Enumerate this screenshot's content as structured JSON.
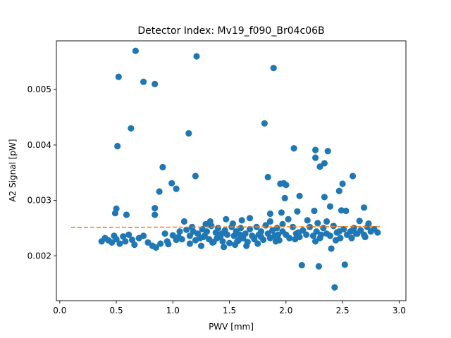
{
  "chart_data": {
    "type": "scatter",
    "title": "Detector Index: Mv19_f090_Br04c06B",
    "xlabel": "PWV [mm]",
    "ylabel": "A2 Signal [pW]",
    "xlim": [
      -0.03,
      3.06
    ],
    "ylim": [
      0.00119,
      0.00588
    ],
    "xticks": [
      0.0,
      0.5,
      1.0,
      1.5,
      2.0,
      2.5,
      3.0
    ],
    "xtick_labels": [
      "0.0",
      "0.5",
      "1.0",
      "1.5",
      "2.0",
      "2.5",
      "3.0"
    ],
    "yticks": [
      0.002,
      0.003,
      0.004,
      0.005
    ],
    "ytick_labels": [
      "0.002",
      "0.003",
      "0.004",
      "0.005"
    ],
    "grid": false,
    "colors": {
      "points": "#1f77b4",
      "fit": "#ff7f0e"
    },
    "series": [
      {
        "name": "measurements",
        "marker": "circle",
        "points": [
          [
            0.67,
            0.0057
          ],
          [
            0.52,
            0.00523
          ],
          [
            0.74,
            0.00514
          ],
          [
            0.84,
            0.0051
          ],
          [
            1.21,
            0.0056
          ],
          [
            1.89,
            0.00539
          ],
          [
            0.51,
            0.00398
          ],
          [
            0.63,
            0.0043
          ],
          [
            1.14,
            0.00421
          ],
          [
            1.81,
            0.00439
          ],
          [
            2.07,
            0.00394
          ],
          [
            2.26,
            0.00391
          ],
          [
            2.26,
            0.00377
          ],
          [
            2.37,
            0.00389
          ],
          [
            2.34,
            0.00367
          ],
          [
            2.3,
            0.00361
          ],
          [
            0.91,
            0.0036
          ],
          [
            1.2,
            0.00344
          ],
          [
            1.84,
            0.00342
          ],
          [
            2.59,
            0.00344
          ],
          [
            0.99,
            0.00331
          ],
          [
            1.03,
            0.00321
          ],
          [
            0.88,
            0.00316
          ],
          [
            1.95,
            0.0033
          ],
          [
            1.98,
            0.00331
          ],
          [
            2.0,
            0.00328
          ],
          [
            2.5,
            0.0033
          ],
          [
            2.47,
            0.00317
          ],
          [
            2.12,
            0.00308
          ],
          [
            2.34,
            0.00306
          ],
          [
            1.99,
            0.00304
          ],
          [
            0.5,
            0.00285
          ],
          [
            0.49,
            0.00277
          ],
          [
            0.59,
            0.00274
          ],
          [
            0.84,
            0.00286
          ],
          [
            0.84,
            0.00274
          ],
          [
            2.25,
            0.00281
          ],
          [
            2.39,
            0.00289
          ],
          [
            2.49,
            0.00282
          ],
          [
            2.53,
            0.00281
          ],
          [
            2.69,
            0.00287
          ],
          [
            1.96,
            0.00278
          ],
          [
            1.86,
            0.00276
          ],
          [
            2.1,
            0.0028
          ],
          [
            2.14,
            0.00183
          ],
          [
            2.29,
            0.00181
          ],
          [
            2.52,
            0.00184
          ],
          [
            2.4,
            0.00213
          ],
          [
            2.43,
            0.00143
          ],
          [
            0.37,
            0.00226
          ],
          [
            0.4,
            0.00232
          ],
          [
            0.43,
            0.00228
          ],
          [
            0.46,
            0.00224
          ],
          [
            0.48,
            0.00236
          ],
          [
            0.5,
            0.0023
          ],
          [
            0.53,
            0.00222
          ],
          [
            0.56,
            0.00235
          ],
          [
            0.58,
            0.00226
          ],
          [
            0.61,
            0.00238
          ],
          [
            0.64,
            0.00229
          ],
          [
            0.66,
            0.0022
          ],
          [
            0.7,
            0.00232
          ],
          [
            0.74,
            0.00236
          ],
          [
            0.78,
            0.00224
          ],
          [
            0.82,
            0.00218
          ],
          [
            0.85,
            0.00215
          ],
          [
            0.89,
            0.00222
          ],
          [
            0.93,
            0.0024
          ],
          [
            0.96,
            0.00221
          ],
          [
            1.0,
            0.00237
          ],
          [
            1.03,
            0.00229
          ],
          [
            1.06,
            0.00244
          ],
          [
            1.08,
            0.0023
          ],
          [
            1.1,
            0.00262
          ],
          [
            1.12,
            0.00247
          ],
          [
            1.15,
            0.00236
          ],
          [
            1.17,
            0.00252
          ],
          [
            1.2,
            0.00228
          ],
          [
            1.22,
            0.0024
          ],
          [
            1.24,
            0.00232
          ],
          [
            1.26,
            0.00248
          ],
          [
            1.28,
            0.00236
          ],
          [
            1.3,
            0.00244
          ],
          [
            1.32,
            0.0023
          ],
          [
            1.34,
            0.00254
          ],
          [
            1.36,
            0.00225
          ],
          [
            1.38,
            0.00242
          ],
          [
            1.4,
            0.0025
          ],
          [
            1.42,
            0.00234
          ],
          [
            1.44,
            0.00226
          ],
          [
            1.46,
            0.00246
          ],
          [
            1.48,
            0.00238
          ],
          [
            1.5,
            0.00223
          ],
          [
            1.52,
            0.00252
          ],
          [
            1.54,
            0.00236
          ],
          [
            1.56,
            0.00244
          ],
          [
            1.58,
            0.00228
          ],
          [
            1.6,
            0.0025
          ],
          [
            1.62,
            0.00232
          ],
          [
            1.64,
            0.0024
          ],
          [
            1.66,
            0.00225
          ],
          [
            1.68,
            0.00248
          ],
          [
            1.7,
            0.00236
          ],
          [
            1.72,
            0.0023
          ],
          [
            1.74,
            0.00252
          ],
          [
            1.76,
            0.00238
          ],
          [
            1.78,
            0.00244
          ],
          [
            1.8,
            0.00229
          ],
          [
            1.82,
            0.00255
          ],
          [
            1.84,
            0.0024
          ],
          [
            1.86,
            0.00232
          ],
          [
            1.88,
            0.00246
          ],
          [
            1.9,
            0.00236
          ],
          [
            1.92,
            0.0025
          ],
          [
            1.94,
            0.00228
          ],
          [
            1.97,
            0.00244
          ],
          [
            2.0,
            0.00238
          ],
          [
            2.03,
            0.00232
          ],
          [
            2.06,
            0.00252
          ],
          [
            2.09,
            0.0024
          ],
          [
            2.12,
            0.00234
          ],
          [
            2.15,
            0.00246
          ],
          [
            2.18,
            0.00238
          ],
          [
            2.21,
            0.00252
          ],
          [
            2.24,
            0.00236
          ],
          [
            2.27,
            0.00244
          ],
          [
            2.3,
            0.00232
          ],
          [
            2.33,
            0.0025
          ],
          [
            2.36,
            0.0024
          ],
          [
            2.39,
            0.00236
          ],
          [
            2.42,
            0.00254
          ],
          [
            2.45,
            0.00242
          ],
          [
            2.48,
            0.00232
          ],
          [
            2.51,
            0.00248
          ],
          [
            2.54,
            0.00238
          ],
          [
            2.57,
            0.00244
          ],
          [
            2.6,
            0.0025
          ],
          [
            2.63,
            0.0024
          ],
          [
            2.66,
            0.00246
          ],
          [
            2.69,
            0.00238
          ],
          [
            2.72,
            0.00252
          ],
          [
            2.75,
            0.00244
          ],
          [
            2.78,
            0.00248
          ],
          [
            2.81,
            0.00242
          ],
          [
            1.15,
            0.00222
          ],
          [
            1.25,
            0.00218
          ],
          [
            1.35,
            0.00224
          ],
          [
            1.45,
            0.00216
          ],
          [
            1.55,
            0.0022
          ],
          [
            1.65,
            0.00218
          ],
          [
            1.75,
            0.00222
          ],
          [
            1.33,
            0.00262
          ],
          [
            1.47,
            0.00266
          ],
          [
            1.61,
            0.00264
          ],
          [
            1.68,
            0.00268
          ],
          [
            1.86,
            0.00262
          ],
          [
            2.02,
            0.00266
          ],
          [
            2.19,
            0.00264
          ],
          [
            2.36,
            0.00262
          ],
          [
            1.29,
            0.00257
          ],
          [
            1.53,
            0.00258
          ],
          [
            1.97,
            0.00257
          ],
          [
            2.28,
            0.00259
          ],
          [
            2.65,
            0.00263
          ],
          [
            2.73,
            0.00258
          ],
          [
            1.39,
            0.00232
          ],
          [
            1.57,
            0.00226
          ],
          [
            1.71,
            0.00234
          ],
          [
            1.91,
            0.00226
          ],
          [
            2.08,
            0.0023
          ],
          [
            2.26,
            0.00226
          ],
          [
            2.44,
            0.00228
          ],
          [
            2.58,
            0.00232
          ],
          [
            2.7,
            0.00234
          ],
          [
            0.95,
            0.00226
          ],
          [
            1.05,
            0.00234
          ],
          [
            1.18,
            0.00244
          ],
          [
            1.27,
            0.00234
          ],
          [
            1.43,
            0.0024
          ],
          [
            1.59,
            0.00238
          ],
          [
            1.78,
            0.00234
          ],
          [
            1.93,
            0.00238
          ],
          [
            2.11,
            0.00242
          ],
          [
            2.31,
            0.00238
          ],
          [
            2.47,
            0.00244
          ],
          [
            2.62,
            0.0024
          ]
        ]
      },
      {
        "name": "fit",
        "style": "dashed",
        "x": [
          0.1,
          2.85
        ],
        "y": [
          0.00251,
          0.00253
        ]
      }
    ]
  }
}
